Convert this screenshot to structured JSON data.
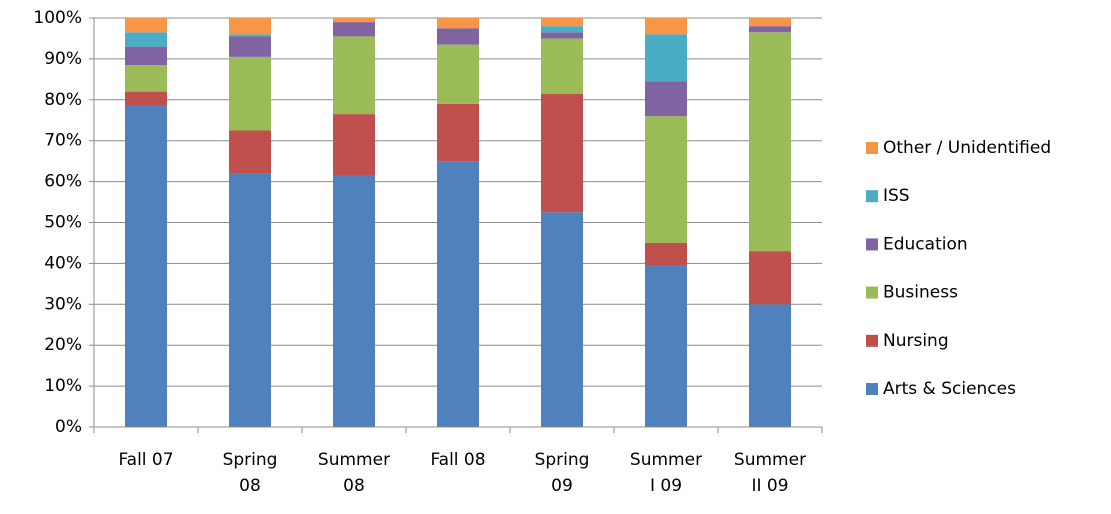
{
  "chart_data": {
    "type": "stacked_bar_percent",
    "categories": [
      "Fall 07",
      "Spring 08",
      "Summer 08",
      "Fall 08",
      "Spring 09",
      "Summer I 09",
      "Summer II 09"
    ],
    "series": [
      {
        "name": "Arts & Sciences",
        "color": "#4f81bd",
        "values": [
          78.5,
          62,
          61.5,
          65,
          52.5,
          39.5,
          30
        ]
      },
      {
        "name": "Nursing",
        "color": "#c0504d",
        "values": [
          3.5,
          10.5,
          15,
          14,
          29,
          5.5,
          13
        ]
      },
      {
        "name": "Business",
        "color": "#9bbb59",
        "values": [
          6.5,
          18,
          19,
          14.5,
          13.5,
          31,
          53.5
        ]
      },
      {
        "name": "Education",
        "color": "#8064a2",
        "values": [
          4.5,
          5,
          3.5,
          4,
          1.5,
          8.5,
          1.5
        ]
      },
      {
        "name": "ISS",
        "color": "#4bacc6",
        "values": [
          3.5,
          0.5,
          0,
          0,
          1.5,
          11.5,
          0
        ]
      },
      {
        "name": "Other / Unidentified",
        "color": "#f79646",
        "values": [
          3.5,
          4,
          1,
          2.5,
          2,
          4,
          2
        ]
      }
    ],
    "ylim": [
      0,
      100
    ],
    "yticks": [
      {
        "value": 0,
        "label": "0%"
      },
      {
        "value": 10,
        "label": "10%"
      },
      {
        "value": 20,
        "label": "20%"
      },
      {
        "value": 30,
        "label": "30%"
      },
      {
        "value": 40,
        "label": "40%"
      },
      {
        "value": 50,
        "label": "50%"
      },
      {
        "value": 60,
        "label": "60%"
      },
      {
        "value": 70,
        "label": "70%"
      },
      {
        "value": 80,
        "label": "80%"
      },
      {
        "value": 90,
        "label": "90%"
      },
      {
        "value": 100,
        "label": "100%"
      }
    ],
    "grid": true,
    "legend": "right"
  }
}
